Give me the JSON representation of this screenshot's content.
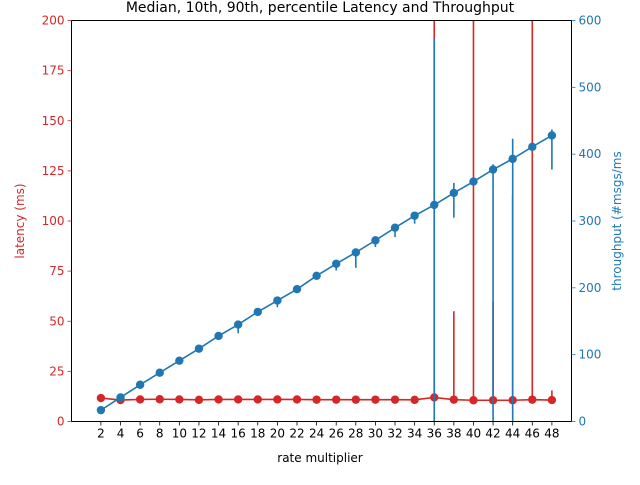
{
  "chart_data": {
    "type": "line",
    "title": "Median, 10th, 90th, percentile Latency and Throughput",
    "xlabel": "rate multiplier",
    "x": [
      2,
      4,
      6,
      8,
      10,
      12,
      14,
      16,
      18,
      20,
      22,
      24,
      26,
      28,
      30,
      32,
      34,
      36,
      38,
      40,
      42,
      44,
      46,
      48
    ],
    "x_ticks": [
      "2",
      "4",
      "6",
      "8",
      "10",
      "12",
      "14",
      "16",
      "18",
      "20",
      "22",
      "24",
      "26",
      "28",
      "30",
      "32",
      "34",
      "36",
      "38",
      "40",
      "42",
      "44",
      "46",
      "48"
    ],
    "xlim": [
      -1,
      50
    ],
    "y_left": {
      "label": "latency (ms)",
      "ylim": [
        0,
        200
      ],
      "ticks": [
        "0",
        "25",
        "50",
        "75",
        "100",
        "125",
        "150",
        "175",
        "200"
      ],
      "color": "#d62728"
    },
    "y_right": {
      "label": "throughput (#msgs/ms",
      "ylim": [
        0,
        600
      ],
      "ticks": [
        "0",
        "100",
        "200",
        "300",
        "400",
        "500",
        "600"
      ],
      "color": "#1f77b4"
    },
    "grid": false,
    "legend": "none",
    "series": [
      {
        "axis": "left",
        "color": "#d62728",
        "median": [
          11.7,
          10.7,
          11.0,
          11.1,
          11.0,
          10.8,
          11.0,
          11.0,
          11.0,
          11.0,
          11.0,
          10.9,
          10.9,
          10.9,
          10.9,
          10.9,
          10.8,
          12.0,
          10.9,
          10.6,
          10.6,
          10.6,
          10.9,
          10.7
        ],
        "p10": [
          10.5,
          9.8,
          10.0,
          10.0,
          10.0,
          9.9,
          10.0,
          10.0,
          10.0,
          10.0,
          10.0,
          9.9,
          9.9,
          9.9,
          9.9,
          9.9,
          9.8,
          10.0,
          9.8,
          9.5,
          9.5,
          9.5,
          9.8,
          9.6
        ],
        "p90": [
          13.0,
          11.7,
          12.0,
          12.1,
          12.0,
          11.7,
          12.0,
          12.0,
          12.0,
          12.0,
          12.0,
          11.9,
          11.9,
          11.9,
          11.9,
          11.9,
          11.8,
          200.0,
          55.0,
          200.0,
          60.0,
          113.0,
          200.0,
          15.5
        ]
      },
      {
        "axis": "right",
        "color": "#1f77b4",
        "median": [
          17,
          36,
          55,
          73,
          91,
          109,
          128,
          145,
          164,
          181,
          198,
          218,
          236,
          253,
          271,
          290,
          308,
          324,
          342,
          359,
          377,
          393,
          411,
          428
        ],
        "p10": [
          16,
          34,
          52,
          70,
          88,
          105,
          125,
          132,
          162,
          171,
          196,
          213,
          226,
          230,
          261,
          276,
          296,
          0,
          305,
          0,
          0,
          0,
          0,
          377
        ],
        "p90": [
          18,
          38,
          57,
          75,
          93,
          111,
          130,
          149,
          166,
          183,
          200,
          220,
          240,
          256,
          277,
          294,
          313,
          573,
          357,
          0,
          385,
          423,
          0,
          437
        ]
      }
    ]
  }
}
